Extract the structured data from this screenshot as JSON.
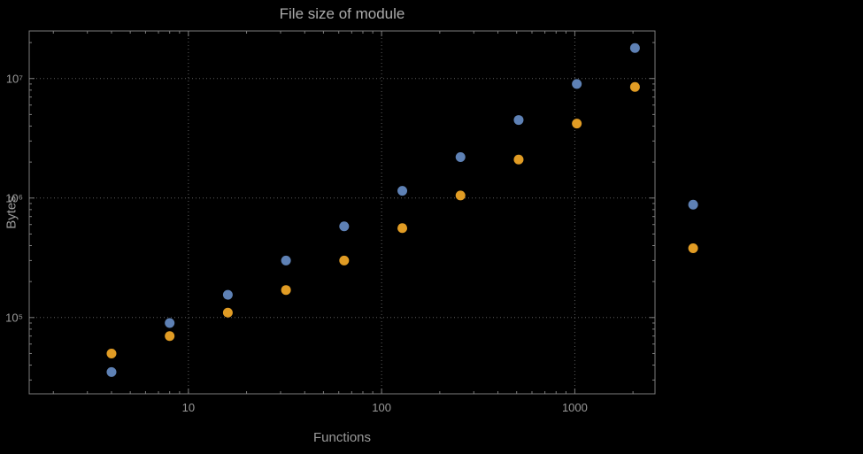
{
  "colors": {
    "background": "#000000",
    "title_text": "#ababab",
    "axis_text": "#9a9a9a",
    "frame": "#7d7d7d",
    "grid": "#5e5e5e",
    "series_blue": "#5e81b5",
    "series_orange": "#e19c24"
  },
  "chart_data": {
    "type": "scatter",
    "title": "File size of module",
    "xlabel": "Functions",
    "ylabel": "Bytes",
    "x_scale": "log",
    "y_scale": "log",
    "xlim": [
      1.5,
      2600
    ],
    "ylim": [
      23000,
      25000000
    ],
    "x_ticks": [
      10,
      100,
      1000
    ],
    "x_tick_labels": [
      "10",
      "100",
      "1000"
    ],
    "y_ticks": [
      100000,
      1000000,
      10000000
    ],
    "y_tick_labels": [
      "10⁵",
      "10⁶",
      "10⁷"
    ],
    "grid": "dotted",
    "legend": "none",
    "x": [
      4,
      8,
      16,
      32,
      64,
      128,
      256,
      512,
      1024,
      2048,
      4096
    ],
    "series": [
      {
        "name": "blue",
        "color": "#5e81b5",
        "values": [
          35000,
          90000,
          155000,
          300000,
          580000,
          1150000,
          2200000,
          4500000,
          9000000,
          18000000,
          880000
        ]
      },
      {
        "name": "orange",
        "color": "#e19c24",
        "values": [
          50000,
          70000,
          110000,
          170000,
          300000,
          560000,
          1050000,
          2100000,
          4200000,
          8500000,
          380000
        ]
      }
    ]
  }
}
